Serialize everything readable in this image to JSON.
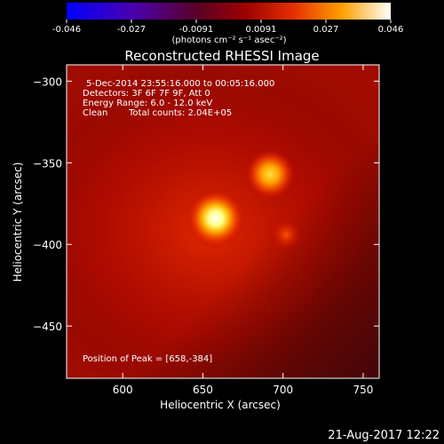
{
  "chart_data": {
    "type": "heatmap",
    "title": "Reconstructed RHESSI Image",
    "xlabel": "Heliocentric X (arcsec)",
    "ylabel": "Heliocentric Y (arcsec)",
    "xlim": [
      565,
      760
    ],
    "ylim": [
      -482,
      -290
    ],
    "xticks": [
      600,
      650,
      700,
      750
    ],
    "yticks": [
      -300,
      -350,
      -400,
      -450
    ],
    "colorbar": {
      "range": [
        -0.046,
        0.046
      ],
      "ticks": [
        "-0.046",
        "-0.027",
        "-0.0091",
        "0.0091",
        "0.027",
        "0.046"
      ],
      "unit_label": "(photons cm⁻² s⁻¹ asec⁻²)",
      "colormap": "heat"
    },
    "sources": [
      {
        "x": 658,
        "y": -384,
        "peak": 1.0,
        "width": 14
      },
      {
        "x": 692,
        "y": -357,
        "peak": 0.75,
        "width": 12
      },
      {
        "x": 702,
        "y": -394,
        "peak": 0.35,
        "width": 8
      }
    ],
    "annotations": {
      "time_range": "5-Dec-2014 23:55:16.000 to 00:05:16.000",
      "detectors": "Detectors: 3F 6F 7F 9F, Att 0",
      "energy": "Energy Range: 6.0 - 12.0 keV",
      "clean": "Clean",
      "counts": "Total counts: 2.04E+05",
      "peak": "Position of Peak = [658,-384]"
    },
    "timestamp": "21-Aug-2017 12:22"
  }
}
